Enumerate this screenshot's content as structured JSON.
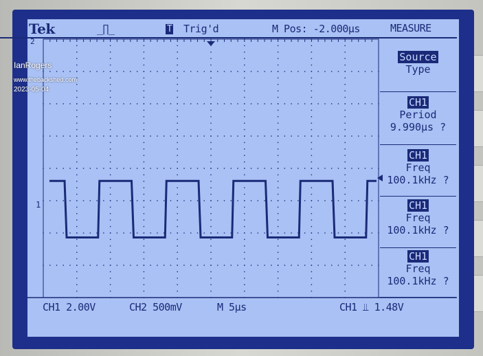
{
  "header": {
    "brand": "Tek",
    "trigger_badge": "T",
    "trigger_status": "Trig'd",
    "position": "M Pos: -2.000µs",
    "menu_title": "MEASURE"
  },
  "menu": {
    "source": {
      "label1": "Source",
      "label2": "Type"
    },
    "items": [
      {
        "channel": "CH1",
        "type": "Period",
        "value": "9.990µs ?"
      },
      {
        "channel": "CH1",
        "type": "Freq",
        "value": "100.1kHz ?"
      },
      {
        "channel": "CH1",
        "type": "Freq",
        "value": "100.1kHz ?"
      },
      {
        "channel": "CH1",
        "type": "Freq",
        "value": "100.1kHz ?"
      }
    ]
  },
  "status": {
    "ch1_scale": "CH1 2.00V",
    "ch2_scale": "CH2 500mV",
    "timebase": "M 5µs",
    "trigger": "CH1 ⫫ 1.48V"
  },
  "markers": {
    "ch1": "1",
    "ch2": "2"
  },
  "watermark": {
    "author": "IanRogers",
    "site": "www.thebackshed.com",
    "date": "2023-05-04"
  },
  "chart_data": {
    "type": "line",
    "title": "",
    "signal": "square wave",
    "channel": "CH1",
    "volts_per_div": 2.0,
    "time_per_div_us": 5,
    "period_us": 9.99,
    "high_div": 1.75,
    "low_div": 0.0,
    "divisions_x": 10,
    "divisions_y": 8,
    "trace_color": "#1a2a78",
    "screen_color": "#a9c1f4"
  }
}
